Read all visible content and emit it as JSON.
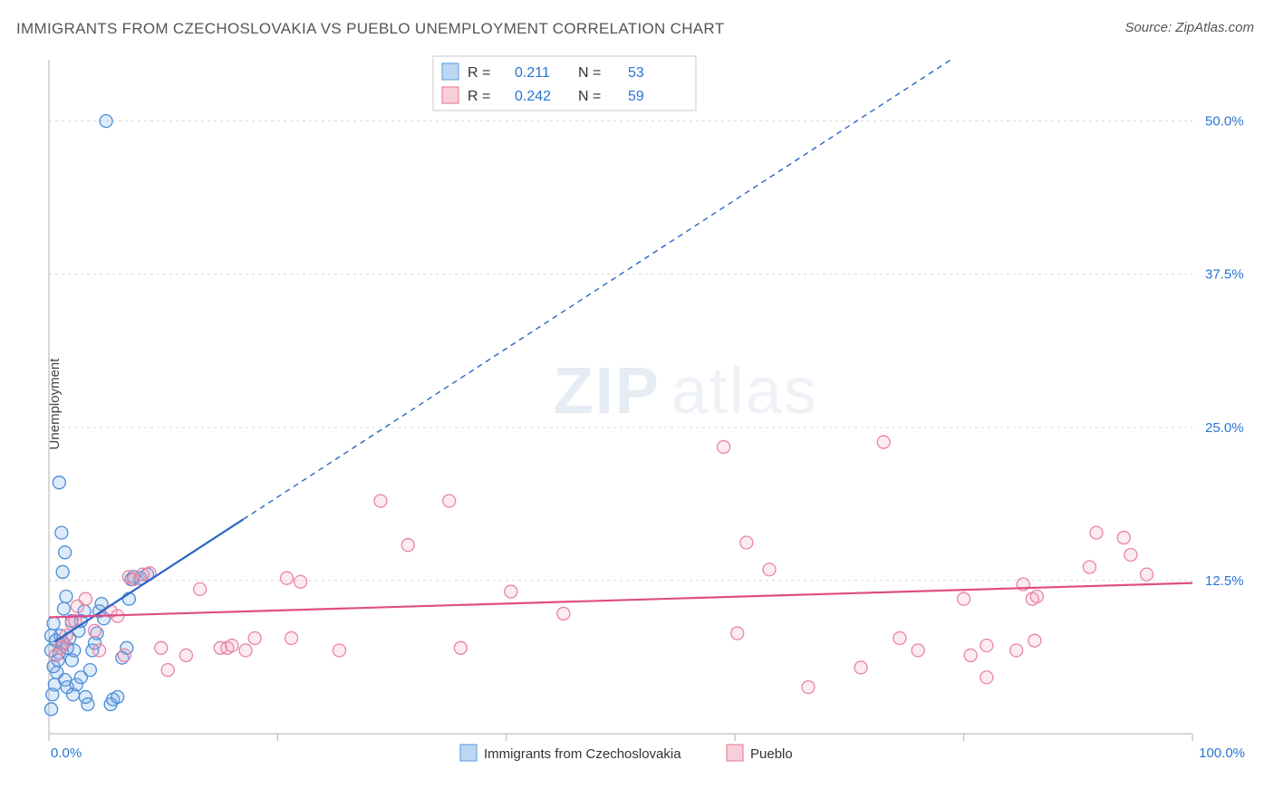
{
  "title": "IMMIGRANTS FROM CZECHOSLOVAKIA VS PUEBLO UNEMPLOYMENT CORRELATION CHART",
  "source": "Source: ZipAtlas.com",
  "ylabel": "Unemployment",
  "watermark": {
    "part1": "ZIP",
    "part2": "atlas"
  },
  "chart": {
    "type": "scatter",
    "xlim": [
      0,
      100
    ],
    "ylim": [
      0,
      55
    ],
    "xticks": [
      0,
      20,
      40,
      60,
      80,
      100
    ],
    "yticks": [
      12.5,
      25.0,
      37.5,
      50.0
    ],
    "xticklabels_shown": [
      "0.0%",
      "100.0%"
    ],
    "yticklabels": [
      "12.5%",
      "25.0%",
      "37.5%",
      "50.0%"
    ],
    "background_color": "#ffffff",
    "grid_color": "#d7d7d7",
    "axis_color": "#bfbfbf",
    "label_color": "#2874d4",
    "marker_radius": 7,
    "marker_stroke_width": 1.3,
    "marker_fill_opacity": 0.22,
    "line_width": 2.2,
    "dash_pattern": "6,5",
    "series": [
      {
        "name": "Immigrants from Czechoslovakia",
        "color": "#6aa6e6",
        "stroke": "#4b8dd6",
        "line_color": "#2a66c4",
        "R": "0.211",
        "N": "53",
        "trend": {
          "x1": 0.5,
          "y1": 7.5,
          "x2": 17,
          "y2": 17.5,
          "extend_to_x": 100
        },
        "points": [
          {
            "x": 0.3,
            "y": 3.2
          },
          {
            "x": 0.5,
            "y": 4.0
          },
          {
            "x": 0.7,
            "y": 5.0
          },
          {
            "x": 0.4,
            "y": 5.5
          },
          {
            "x": 0.8,
            "y": 6.0
          },
          {
            "x": 0.9,
            "y": 6.6
          },
          {
            "x": 1.0,
            "y": 7.0
          },
          {
            "x": 1.2,
            "y": 7.4
          },
          {
            "x": 1.0,
            "y": 8.0
          },
          {
            "x": 1.6,
            "y": 7.0
          },
          {
            "x": 1.8,
            "y": 7.8
          },
          {
            "x": 2.0,
            "y": 6.0
          },
          {
            "x": 2.2,
            "y": 6.8
          },
          {
            "x": 1.4,
            "y": 4.4
          },
          {
            "x": 1.6,
            "y": 3.8
          },
          {
            "x": 2.1,
            "y": 3.2
          },
          {
            "x": 2.4,
            "y": 4.0
          },
          {
            "x": 2.8,
            "y": 4.6
          },
          {
            "x": 3.2,
            "y": 3.0
          },
          {
            "x": 3.4,
            "y": 2.4
          },
          {
            "x": 3.6,
            "y": 5.2
          },
          {
            "x": 3.8,
            "y": 6.8
          },
          {
            "x": 4.0,
            "y": 7.4
          },
          {
            "x": 4.4,
            "y": 10.0
          },
          {
            "x": 4.6,
            "y": 10.6
          },
          {
            "x": 4.8,
            "y": 9.4
          },
          {
            "x": 1.3,
            "y": 10.2
          },
          {
            "x": 1.5,
            "y": 11.2
          },
          {
            "x": 0.9,
            "y": 20.5
          },
          {
            "x": 1.2,
            "y": 13.2
          },
          {
            "x": 1.4,
            "y": 14.8
          },
          {
            "x": 1.1,
            "y": 16.4
          },
          {
            "x": 5.4,
            "y": 2.4
          },
          {
            "x": 5.6,
            "y": 2.8
          },
          {
            "x": 6.0,
            "y": 3.0
          },
          {
            "x": 6.4,
            "y": 6.2
          },
          {
            "x": 6.8,
            "y": 7.0
          },
          {
            "x": 7.0,
            "y": 11.0
          },
          {
            "x": 7.2,
            "y": 12.6
          },
          {
            "x": 7.4,
            "y": 12.8
          },
          {
            "x": 8.0,
            "y": 12.7
          },
          {
            "x": 8.6,
            "y": 13.0
          },
          {
            "x": 2.6,
            "y": 8.4
          },
          {
            "x": 2.8,
            "y": 9.2
          },
          {
            "x": 3.1,
            "y": 10.0
          },
          {
            "x": 0.2,
            "y": 6.8
          },
          {
            "x": 0.2,
            "y": 8.0
          },
          {
            "x": 0.4,
            "y": 9.0
          },
          {
            "x": 0.6,
            "y": 7.6
          },
          {
            "x": 2.0,
            "y": 9.2
          },
          {
            "x": 4.2,
            "y": 8.2
          },
          {
            "x": 5.0,
            "y": 50.0
          },
          {
            "x": 0.2,
            "y": 2.0
          }
        ]
      },
      {
        "name": "Pueblo",
        "color": "#f2a6ba",
        "stroke": "#e985a1",
        "line_color": "#e04d86",
        "R": "0.242",
        "N": "59",
        "trend": {
          "x1": 0,
          "y1": 9.5,
          "x2": 100,
          "y2": 12.3
        },
        "points": [
          {
            "x": 0.6,
            "y": 6.4
          },
          {
            "x": 1.0,
            "y": 7.0
          },
          {
            "x": 1.3,
            "y": 7.4
          },
          {
            "x": 1.5,
            "y": 8.0
          },
          {
            "x": 2.0,
            "y": 9.0
          },
          {
            "x": 2.3,
            "y": 9.2
          },
          {
            "x": 2.5,
            "y": 10.4
          },
          {
            "x": 3.2,
            "y": 11.0
          },
          {
            "x": 4.0,
            "y": 8.4
          },
          {
            "x": 4.4,
            "y": 6.8
          },
          {
            "x": 5.4,
            "y": 10.0
          },
          {
            "x": 6.0,
            "y": 9.6
          },
          {
            "x": 6.6,
            "y": 6.4
          },
          {
            "x": 7.0,
            "y": 12.8
          },
          {
            "x": 7.4,
            "y": 12.6
          },
          {
            "x": 8.2,
            "y": 13.0
          },
          {
            "x": 8.8,
            "y": 13.1
          },
          {
            "x": 9.8,
            "y": 7.0
          },
          {
            "x": 10.4,
            "y": 5.2
          },
          {
            "x": 12.0,
            "y": 6.4
          },
          {
            "x": 13.2,
            "y": 11.8
          },
          {
            "x": 15.0,
            "y": 7.0
          },
          {
            "x": 15.6,
            "y": 7.0
          },
          {
            "x": 16.0,
            "y": 7.2
          },
          {
            "x": 17.2,
            "y": 6.8
          },
          {
            "x": 18.0,
            "y": 7.8
          },
          {
            "x": 20.8,
            "y": 12.7
          },
          {
            "x": 21.2,
            "y": 7.8
          },
          {
            "x": 22.0,
            "y": 12.4
          },
          {
            "x": 25.4,
            "y": 6.8
          },
          {
            "x": 29.0,
            "y": 19.0
          },
          {
            "x": 31.4,
            "y": 15.4
          },
          {
            "x": 35.0,
            "y": 19.0
          },
          {
            "x": 36.0,
            "y": 7.0
          },
          {
            "x": 40.4,
            "y": 11.6
          },
          {
            "x": 45.0,
            "y": 9.8
          },
          {
            "x": 59.0,
            "y": 23.4
          },
          {
            "x": 60.2,
            "y": 8.2
          },
          {
            "x": 61.0,
            "y": 15.6
          },
          {
            "x": 63.0,
            "y": 13.4
          },
          {
            "x": 66.4,
            "y": 3.8
          },
          {
            "x": 71.0,
            "y": 5.4
          },
          {
            "x": 73.0,
            "y": 23.8
          },
          {
            "x": 74.4,
            "y": 7.8
          },
          {
            "x": 76.0,
            "y": 6.8
          },
          {
            "x": 80.0,
            "y": 11.0
          },
          {
            "x": 80.6,
            "y": 6.4
          },
          {
            "x": 82.0,
            "y": 7.2
          },
          {
            "x": 82.0,
            "y": 4.6
          },
          {
            "x": 84.6,
            "y": 6.8
          },
          {
            "x": 85.2,
            "y": 12.2
          },
          {
            "x": 86.0,
            "y": 11.0
          },
          {
            "x": 86.4,
            "y": 11.2
          },
          {
            "x": 91.0,
            "y": 13.6
          },
          {
            "x": 91.6,
            "y": 16.4
          },
          {
            "x": 94.0,
            "y": 16.0
          },
          {
            "x": 94.6,
            "y": 14.6
          },
          {
            "x": 96.0,
            "y": 13.0
          },
          {
            "x": 86.2,
            "y": 7.6
          }
        ]
      }
    ],
    "bottom_legend": [
      {
        "label": "Immigrants from Czechoslovakia",
        "fill": "#bdd6f2",
        "stroke": "#6aa6e6"
      },
      {
        "label": "Pueblo",
        "fill": "#f8cfd9",
        "stroke": "#e985a1"
      }
    ],
    "stats_box": {
      "border_color": "#c9c9c9",
      "rows": [
        {
          "swatch_fill": "#bdd6f2",
          "swatch_stroke": "#6aa6e6",
          "R_label": "R  =",
          "R": "0.211",
          "N_label": "N  =",
          "N": "53"
        },
        {
          "swatch_fill": "#f8cfd9",
          "swatch_stroke": "#e985a1",
          "R_label": "R  =",
          "R": "0.242",
          "N_label": "N  =",
          "N": "59"
        }
      ]
    }
  }
}
